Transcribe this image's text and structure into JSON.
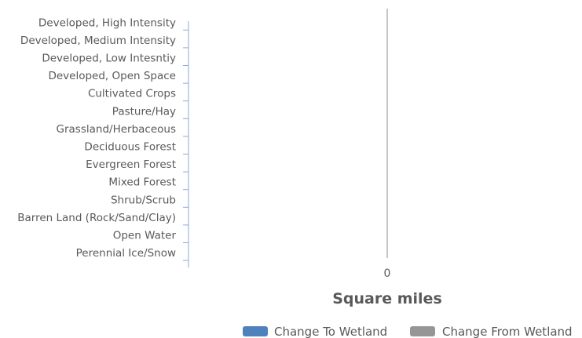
{
  "chart_data": {
    "type": "bar",
    "orientation": "horizontal",
    "categories": [
      "Developed, High Intensity",
      "Developed, Medium Intensity",
      "Developed, Low Intesntiy",
      "Developed, Open Space",
      "Cultivated Crops",
      "Pasture/Hay",
      "Grassland/Herbaceous",
      "Deciduous Forest",
      "Evergreen Forest",
      "Mixed Forest",
      "Shrub/Scrub",
      "Barren Land (Rock/Sand/Clay)",
      "Open Water",
      "Perennial Ice/Snow"
    ],
    "series": [
      {
        "name": "Change To Wetland",
        "color": "#4f81bd",
        "values": [
          0,
          0,
          0,
          0,
          0,
          0,
          0,
          0,
          0,
          0,
          0,
          0,
          0,
          0
        ]
      },
      {
        "name": "Change From Wetland",
        "color": "#969696",
        "values": [
          0,
          0,
          0,
          0,
          0,
          0,
          0,
          0,
          0,
          0,
          0,
          0,
          0,
          0
        ]
      }
    ],
    "x_ticks": [
      "0"
    ],
    "xlabel": "Square miles",
    "legend_position": "bottom-right",
    "grid": false,
    "zero_line_color": "#b3b3b3",
    "axis_tick_color": "#8eaadb"
  }
}
